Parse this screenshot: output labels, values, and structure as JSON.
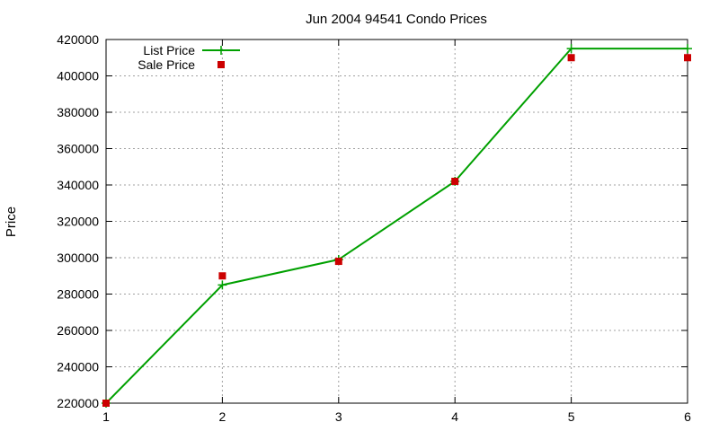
{
  "chart_data": {
    "type": "line",
    "title": "Jun 2004 94541 Condo Prices",
    "xlabel": "",
    "ylabel": "Price",
    "xlim": [
      1,
      6
    ],
    "ylim": [
      220000,
      420000
    ],
    "xticks": [
      1,
      2,
      3,
      4,
      5,
      6
    ],
    "yticks": [
      220000,
      240000,
      260000,
      280000,
      300000,
      320000,
      340000,
      360000,
      380000,
      400000,
      420000
    ],
    "grid": true,
    "legend_position": "top-left",
    "series": [
      {
        "name": "List Price",
        "style": "line-with-plus-markers",
        "color": "#00a000",
        "x": [
          1,
          2,
          3,
          4,
          5,
          6
        ],
        "y": [
          220000,
          285000,
          299000,
          342000,
          415000,
          415000
        ]
      },
      {
        "name": "Sale Price",
        "style": "square-points",
        "color": "#cc0000",
        "x": [
          1,
          2,
          3,
          4,
          5,
          6
        ],
        "y": [
          220000,
          290000,
          298000,
          342000,
          410000,
          410000
        ]
      }
    ]
  }
}
